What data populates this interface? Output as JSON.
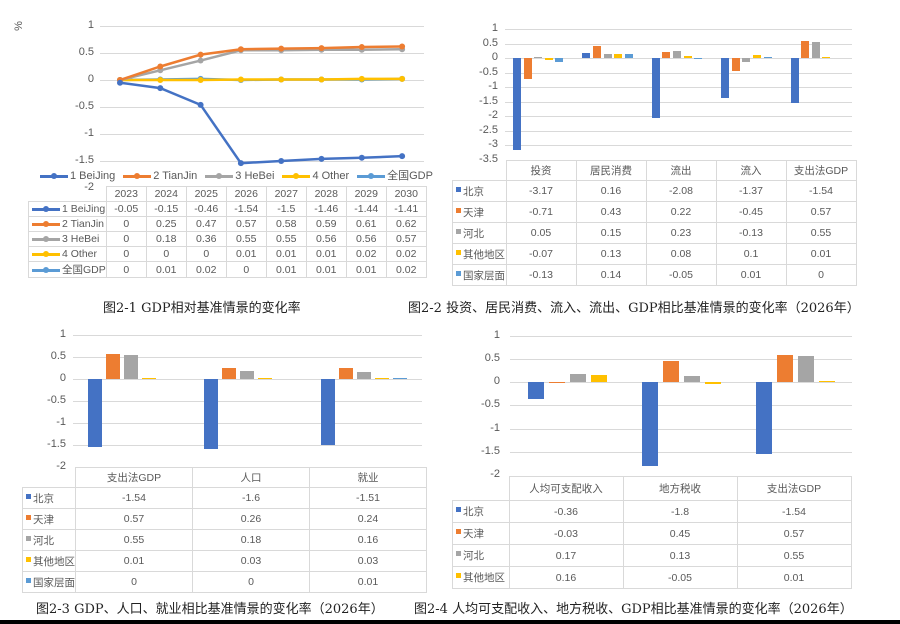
{
  "colors": {
    "beijing": "#4472c4",
    "tianjin": "#ed7d31",
    "hebei": "#a5a5a5",
    "other": "#ffc000",
    "national": "#5b9bd5"
  },
  "chart_data": [
    {
      "id": "fig2-1",
      "type": "line",
      "title": "图2-1 GDP相对基准情景的变化率",
      "ylabel": "%",
      "xlabel": "",
      "ylim": [
        -2,
        1
      ],
      "yticks": [
        "1",
        "0.5",
        "0",
        "-0.5",
        "-1",
        "-1.5",
        "-2"
      ],
      "x": [
        "2023",
        "2024",
        "2025",
        "2026",
        "2027",
        "2028",
        "2029",
        "2030"
      ],
      "series": [
        {
          "name": "1 BeiJing",
          "values": [
            -0.05,
            -0.15,
            -0.46,
            -1.54,
            -1.5,
            -1.46,
            -1.44,
            -1.41
          ],
          "display": [
            "-0.05",
            "-0.15",
            "-0.46",
            "-1.54",
            "-1.5",
            "-1.46",
            "-1.44",
            "-1.41"
          ]
        },
        {
          "name": "2 TianJin",
          "values": [
            0,
            0.25,
            0.47,
            0.57,
            0.58,
            0.59,
            0.61,
            0.62
          ],
          "display": [
            "0",
            "0.25",
            "0.47",
            "0.57",
            "0.58",
            "0.59",
            "0.61",
            "0.62"
          ]
        },
        {
          "name": "3 HeBei",
          "values": [
            0,
            0.18,
            0.36,
            0.55,
            0.55,
            0.56,
            0.56,
            0.57
          ],
          "display": [
            "0",
            "0.18",
            "0.36",
            "0.55",
            "0.55",
            "0.56",
            "0.56",
            "0.57"
          ]
        },
        {
          "name": "4 Other",
          "values": [
            0,
            0,
            0,
            0.01,
            0.01,
            0.01,
            0.02,
            0.02
          ],
          "display": [
            "0",
            "0",
            "0",
            "0.01",
            "0.01",
            "0.01",
            "0.02",
            "0.02"
          ]
        },
        {
          "name": "全国GDP",
          "values": [
            0,
            0.01,
            0.02,
            0,
            0.01,
            0.01,
            0.01,
            0.02
          ],
          "display": [
            "0",
            "0.01",
            "0.02",
            "0",
            "0.01",
            "0.01",
            "0.01",
            "0.02"
          ]
        }
      ],
      "legend_position": "bottom",
      "grid": true
    },
    {
      "id": "fig2-2",
      "type": "bar",
      "title": "图2-2 投资、居民消费、流入、流出、GDP相比基准情景的变化率（2026年）",
      "ylim": [
        -3.5,
        1
      ],
      "yticks": [
        "1",
        "0.5",
        "0",
        "-0.5",
        "-1",
        "-1.5",
        "-2",
        "-2.5",
        "-3",
        "-3.5"
      ],
      "categories": [
        "投资",
        "居民消费",
        "流出",
        "流入",
        "支出法GDP"
      ],
      "series": [
        {
          "name": "北京",
          "values": [
            -3.17,
            0.16,
            -2.08,
            -1.37,
            -1.54
          ],
          "display": [
            "-3.17",
            "0.16",
            "-2.08",
            "-1.37",
            "-1.54"
          ]
        },
        {
          "name": "天津",
          "values": [
            -0.71,
            0.43,
            0.22,
            -0.45,
            0.57
          ],
          "display": [
            "-0.71",
            "0.43",
            "0.22",
            "-0.45",
            "0.57"
          ]
        },
        {
          "name": "河北",
          "values": [
            0.05,
            0.15,
            0.23,
            -0.13,
            0.55
          ],
          "display": [
            "0.05",
            "0.15",
            "0.23",
            "-0.13",
            "0.55"
          ]
        },
        {
          "name": "其他地区",
          "values": [
            -0.07,
            0.13,
            0.08,
            0.1,
            0.01
          ],
          "display": [
            "-0.07",
            "0.13",
            "0.08",
            "0.1",
            "0.01"
          ]
        },
        {
          "name": "国家层面",
          "values": [
            -0.13,
            0.14,
            -0.05,
            0.01,
            0
          ],
          "display": [
            "-0.13",
            "0.14",
            "-0.05",
            "0.01",
            "0"
          ]
        }
      ],
      "grid": true
    },
    {
      "id": "fig2-3",
      "type": "bar",
      "title": "图2-3 GDP、人口、就业相比基准情景的变化率（2026年）",
      "ylim": [
        -2,
        1
      ],
      "yticks": [
        "1",
        "0.5",
        "0",
        "-0.5",
        "-1",
        "-1.5",
        "-2"
      ],
      "categories": [
        "支出法GDP",
        "人口",
        "就业"
      ],
      "series": [
        {
          "name": "北京",
          "values": [
            -1.54,
            -1.6,
            -1.51
          ],
          "display": [
            "-1.54",
            "-1.6",
            "-1.51"
          ]
        },
        {
          "name": "天津",
          "values": [
            0.57,
            0.26,
            0.24
          ],
          "display": [
            "0.57",
            "0.26",
            "0.24"
          ]
        },
        {
          "name": "河北",
          "values": [
            0.55,
            0.18,
            0.16
          ],
          "display": [
            "0.55",
            "0.18",
            "0.16"
          ]
        },
        {
          "name": "其他地区",
          "values": [
            0.01,
            0.03,
            0.03
          ],
          "display": [
            "0.01",
            "0.03",
            "0.03"
          ]
        },
        {
          "name": "国家层面",
          "values": [
            0,
            0,
            0.01
          ],
          "display": [
            "0",
            "0",
            "0.01"
          ]
        }
      ],
      "grid": true
    },
    {
      "id": "fig2-4",
      "type": "bar",
      "title": "图2-4 人均可支配收入、地方税收、GDP相比基准情景的变化率（2026年）",
      "ylim": [
        -2,
        1
      ],
      "yticks": [
        "1",
        "0.5",
        "0",
        "-0.5",
        "-1",
        "-1.5",
        "-2"
      ],
      "categories": [
        "人均可支配收入",
        "地方税收",
        "支出法GDP"
      ],
      "series": [
        {
          "name": "北京",
          "values": [
            -0.36,
            -1.8,
            -1.54
          ],
          "display": [
            "-0.36",
            "-1.8",
            "-1.54"
          ]
        },
        {
          "name": "天津",
          "values": [
            -0.03,
            0.45,
            0.57
          ],
          "display": [
            "-0.03",
            "0.45",
            "0.57"
          ]
        },
        {
          "name": "河北",
          "values": [
            0.17,
            0.13,
            0.55
          ],
          "display": [
            "0.17",
            "0.13",
            "0.55"
          ]
        },
        {
          "name": "其他地区",
          "values": [
            0.16,
            -0.05,
            0.01
          ],
          "display": [
            "0.16",
            "-0.05",
            "0.01"
          ]
        }
      ],
      "grid": true
    }
  ]
}
